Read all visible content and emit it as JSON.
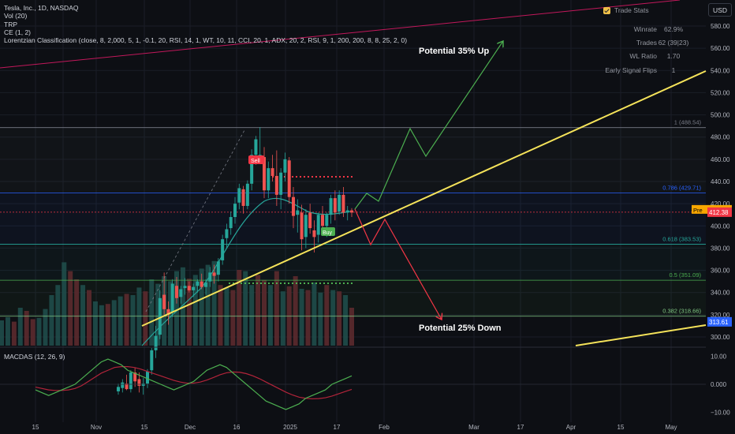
{
  "header": {
    "symbol_line": "Tesla, Inc., 1D, NASDAQ",
    "indicators": [
      "Vol (20)",
      "TRP",
      "CE (1, 2)",
      "Lorentzian Classification (close, 8, 2,000, 5, 1, -0.1, 20, RSI, 14, 1, WT, 10, 11, CCI, 20, 1, ADX, 20, 2, RSI, 9, 1, 200, 200, 8, 8, 25, 2, 0)"
    ],
    "currency_button": "USD"
  },
  "trade_stats": {
    "title": "Trade Stats",
    "rows": [
      {
        "label": "Winrate",
        "value": "62.9%"
      },
      {
        "label": "Trades",
        "value": "62 (39|23)"
      },
      {
        "label": "WL Ratio",
        "value": "1.70"
      },
      {
        "label": "Early Signal Flips",
        "value": "1"
      }
    ]
  },
  "macd_label": "MACDAS (12, 26, 9)",
  "colors": {
    "bull": "#26a69a",
    "bear": "#ef5350",
    "trend": "#f5e35a",
    "up_arrow": "#4caf50",
    "down_arrow": "#f23645",
    "grid": "#1a1e27"
  },
  "chart_data": {
    "type": "candlestick",
    "price_axis": {
      "min": 292,
      "max": 598,
      "ticks": [
        300,
        320,
        340,
        360,
        380,
        400,
        420,
        440,
        460,
        480,
        500,
        520,
        540,
        560,
        580
      ]
    },
    "macd_axis": {
      "min": -12,
      "max": 13,
      "ticks": [
        "10.00",
        "0.000",
        "−10.00"
      ]
    },
    "x_axis": {
      "labels": [
        "15",
        "Nov",
        "15",
        "Dec",
        "16",
        "2025",
        "17",
        "Feb",
        "Mar",
        "17",
        "Apr",
        "15",
        "May"
      ]
    },
    "fib_levels": [
      {
        "label": "1 (488.54)",
        "value": 488.54,
        "color": "#787b86"
      },
      {
        "label": "0.786 (429.71)",
        "value": 429.71,
        "color": "#2962ff"
      },
      {
        "label": "0.618 (383.53)",
        "value": 383.53,
        "color": "#26a69a"
      },
      {
        "label": "0.5 (351.09)",
        "value": 351.09,
        "color": "#4caf50"
      },
      {
        "label": "0.382 (318.66)",
        "value": 318.66,
        "color": "#81c784"
      }
    ],
    "price_tags": [
      {
        "label": "Pre",
        "value": "414.51",
        "color": "#f7a600"
      },
      {
        "label": "",
        "value": "412.38",
        "color": "#f23645"
      },
      {
        "label": "",
        "value": "313.61",
        "color": "#2962ff"
      }
    ],
    "annotations": [
      "Potential 35% Up",
      "Potential 25% Down"
    ],
    "candles": [
      [
        251,
        258,
        248,
        255
      ],
      [
        254,
        262,
        250,
        259
      ],
      [
        258,
        266,
        252,
        253
      ],
      [
        253,
        270,
        250,
        268
      ],
      [
        268,
        272,
        255,
        260
      ],
      [
        262,
        268,
        250,
        256
      ],
      [
        256,
        263,
        248,
        258
      ],
      [
        258,
        271,
        254,
        269
      ],
      [
        270,
        290,
        266,
        288
      ],
      [
        288,
        310,
        281,
        301
      ],
      [
        302,
        342,
        298,
        335
      ],
      [
        338,
        358,
        320,
        325
      ],
      [
        325,
        332,
        311,
        320
      ],
      [
        322,
        352,
        318,
        348
      ],
      [
        346,
        354,
        330,
        335
      ],
      [
        336,
        346,
        330,
        343
      ],
      [
        344,
        353,
        338,
        346
      ],
      [
        346,
        350,
        340,
        342
      ],
      [
        342,
        348,
        336,
        345
      ],
      [
        346,
        352,
        340,
        350
      ],
      [
        350,
        357,
        343,
        345
      ],
      [
        345,
        352,
        338,
        349
      ],
      [
        350,
        363,
        345,
        358
      ],
      [
        358,
        365,
        348,
        355
      ],
      [
        356,
        371,
        350,
        368
      ],
      [
        369,
        392,
        365,
        388
      ],
      [
        389,
        402,
        380,
        397
      ],
      [
        398,
        413,
        392,
        408
      ],
      [
        408,
        426,
        402,
        420
      ],
      [
        421,
        438,
        415,
        434
      ],
      [
        433,
        436,
        411,
        418
      ],
      [
        418,
        441,
        415,
        438
      ],
      [
        438,
        469,
        432,
        464
      ],
      [
        464,
        481,
        455,
        478
      ],
      [
        460,
        489,
        458,
        464
      ],
      [
        462,
        471,
        425,
        432
      ],
      [
        432,
        458,
        425,
        452
      ],
      [
        452,
        464,
        440,
        445
      ],
      [
        445,
        468,
        418,
        428
      ],
      [
        428,
        452,
        415,
        448
      ],
      [
        448,
        466,
        440,
        460
      ],
      [
        459,
        462,
        420,
        426
      ],
      [
        426,
        435,
        398,
        409
      ],
      [
        410,
        424,
        394,
        414
      ],
      [
        412,
        419,
        378,
        388
      ],
      [
        390,
        415,
        380,
        410
      ],
      [
        412,
        420,
        393,
        398
      ],
      [
        396,
        405,
        376,
        390
      ],
      [
        392,
        412,
        385,
        410
      ],
      [
        410,
        418,
        395,
        400
      ],
      [
        400,
        412,
        390,
        410
      ],
      [
        410,
        428,
        402,
        425
      ],
      [
        425,
        432,
        405,
        412
      ],
      [
        413,
        432,
        410,
        428
      ],
      [
        428,
        435,
        408,
        412
      ],
      [
        412,
        418,
        405,
        414
      ],
      [
        414,
        416,
        408,
        412
      ]
    ],
    "volumes": [
      40,
      45,
      38,
      60,
      55,
      42,
      44,
      58,
      80,
      96,
      132,
      118,
      105,
      96,
      88,
      70,
      64,
      66,
      72,
      78,
      82,
      80,
      92,
      86,
      105,
      98,
      110,
      102,
      118,
      124,
      106,
      112,
      122,
      128,
      134,
      96,
      92,
      88,
      120,
      118,
      96,
      112,
      104,
      96,
      118,
      86,
      94,
      110,
      90,
      88,
      100,
      84,
      96,
      88,
      86,
      80,
      60
    ],
    "macd": [
      -2,
      -3,
      -4,
      -3,
      -2,
      -1,
      0,
      2,
      4,
      6,
      8,
      9,
      8,
      7,
      5,
      4,
      3,
      2,
      1,
      0,
      -1,
      -2,
      -1,
      0,
      1,
      3,
      5,
      6,
      7,
      6,
      4,
      2,
      0,
      -2,
      -4,
      -6,
      -7,
      -8,
      -9,
      -8,
      -7,
      -5,
      -4,
      -3,
      -2,
      0,
      1,
      2,
      3
    ],
    "signal": [
      -1,
      -1.5,
      -2,
      -2.2,
      -2.2,
      -2,
      -1.5,
      -0.5,
      1,
      2.5,
      4,
      5,
      6,
      6.3,
      6.3,
      6,
      5.4,
      4.6,
      3.8,
      3,
      2.2,
      1.4,
      0.8,
      0.4,
      0.4,
      0.8,
      1.5,
      2.4,
      3.4,
      4.1,
      4.4,
      4.3,
      3.8,
      3,
      2,
      0.8,
      -0.4,
      -1.6,
      -2.8,
      -3.8,
      -4.6,
      -5,
      -5.2,
      -5.1,
      -4.8,
      -4.2,
      -3.4,
      -2.6,
      -1.8
    ]
  }
}
